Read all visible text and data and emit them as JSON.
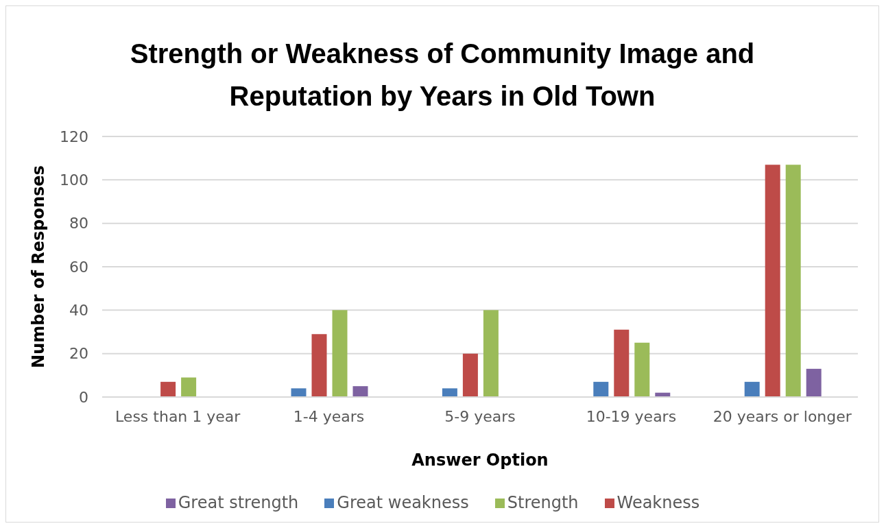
{
  "chart_data": {
    "type": "bar",
    "title": "Strength or Weakness of Community Image and Reputation by Years in Old Town",
    "xlabel": "Answer Option",
    "ylabel": "Number of Responses",
    "categories": [
      "Less than 1 year",
      "1-4 years",
      "5-9 years",
      "10-19 years",
      "20 years or longer"
    ],
    "series": [
      {
        "name": "Great weakness",
        "color": "#4a7ebb",
        "values": [
          0,
          4,
          4,
          7,
          7
        ]
      },
      {
        "name": "Weakness",
        "color": "#be4b48",
        "values": [
          7,
          29,
          20,
          31,
          107
        ]
      },
      {
        "name": "Strength",
        "color": "#9bbb59",
        "values": [
          9,
          40,
          40,
          25,
          107
        ]
      },
      {
        "name": "Great strength",
        "color": "#7e62a1",
        "values": [
          0,
          5,
          0,
          2,
          13
        ]
      }
    ],
    "ylim": [
      0,
      120
    ],
    "yticks": [
      0,
      20,
      40,
      60,
      80,
      100,
      120
    ],
    "grid": "y",
    "legend": "bottom"
  }
}
